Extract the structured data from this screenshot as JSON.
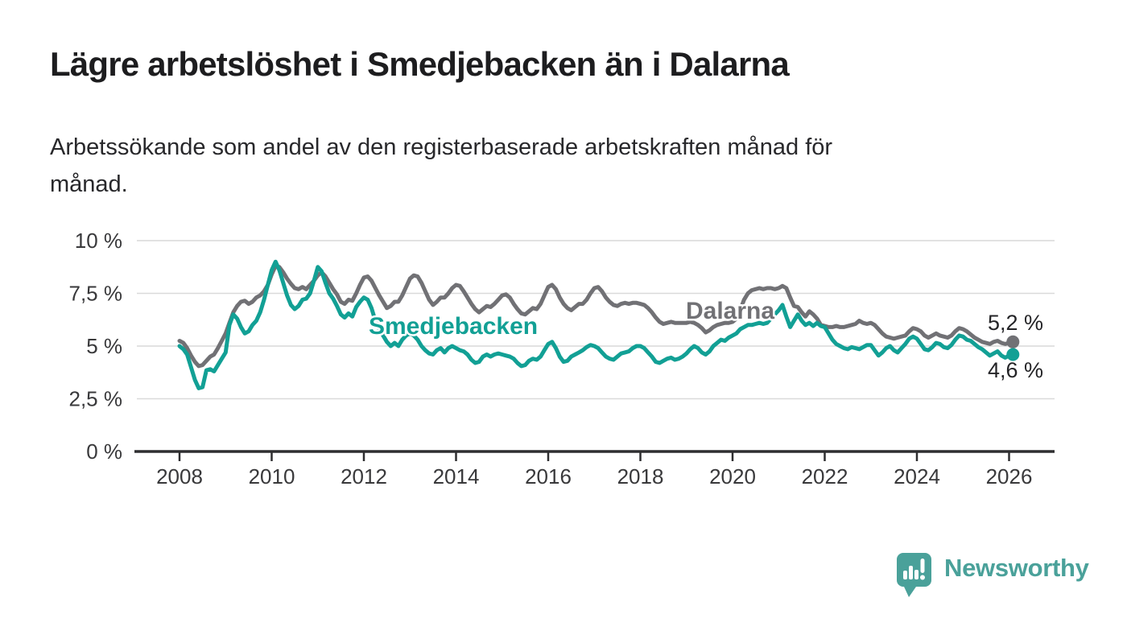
{
  "header": {
    "title": "Lägre arbetslöshet i Smedjebacken än i Dalarna",
    "subtitle_lines": [
      "Arbetssökande som andel av den registerbaserade arbetskraften månad för",
      "månad."
    ]
  },
  "chart_data": {
    "type": "line",
    "title": "Lägre arbetslöshet i Smedjebacken än i Dalarna",
    "subtitle": "Arbetssökande som andel av den registerbaserade arbetskraften månad för månad.",
    "x_unit": "year-month",
    "x_start": "2008-01",
    "x_end": "2026-02",
    "points_per_year": 12,
    "ylim": [
      0,
      10
    ],
    "grid": true,
    "legend_position": "inline-labels",
    "y_ticks": {
      "values": [
        10,
        7.5,
        5,
        2.5,
        0
      ],
      "labels": [
        "10 %",
        "7,5 %",
        "5 %",
        "2,5 %",
        "0 %"
      ]
    },
    "x_ticks": {
      "values": [
        2008,
        2010,
        2012,
        2014,
        2016,
        2018,
        2020,
        2022,
        2024,
        2026
      ],
      "labels": [
        "2008",
        "2010",
        "2012",
        "2014",
        "2016",
        "2018",
        "2020",
        "2022",
        "2024",
        "2026"
      ]
    },
    "series": [
      {
        "name": "Dalarna",
        "color": "#717175",
        "end_label": "5,2 %",
        "end_value": 5.2,
        "values": [
          5.25,
          5.15,
          4.9,
          4.55,
          4.25,
          4.05,
          4.1,
          4.3,
          4.5,
          4.6,
          4.9,
          5.25,
          5.6,
          6.1,
          6.6,
          6.9,
          7.1,
          7.15,
          7.0,
          7.1,
          7.3,
          7.4,
          7.6,
          7.9,
          8.4,
          8.8,
          8.75,
          8.5,
          8.2,
          7.95,
          7.75,
          7.7,
          7.8,
          7.7,
          7.9,
          8.1,
          8.35,
          8.5,
          8.3,
          8.0,
          7.7,
          7.45,
          7.1,
          7.0,
          7.2,
          7.15,
          7.5,
          7.9,
          8.25,
          8.3,
          8.1,
          7.75,
          7.4,
          7.1,
          6.8,
          6.9,
          7.1,
          7.1,
          7.4,
          7.8,
          8.2,
          8.35,
          8.3,
          8.0,
          7.6,
          7.2,
          6.95,
          7.1,
          7.3,
          7.3,
          7.5,
          7.75,
          7.9,
          7.85,
          7.6,
          7.3,
          7.0,
          6.75,
          6.6,
          6.75,
          6.9,
          6.85,
          7.0,
          7.2,
          7.4,
          7.45,
          7.3,
          7.0,
          6.75,
          6.55,
          6.5,
          6.65,
          6.8,
          6.75,
          7.0,
          7.4,
          7.8,
          7.9,
          7.7,
          7.3,
          7.0,
          6.8,
          6.7,
          6.85,
          7.0,
          7.0,
          7.2,
          7.5,
          7.75,
          7.8,
          7.6,
          7.3,
          7.1,
          6.95,
          6.9,
          7.0,
          7.05,
          7.0,
          7.05,
          7.05,
          7.0,
          6.95,
          6.8,
          6.6,
          6.35,
          6.15,
          6.05,
          6.1,
          6.15,
          6.1,
          6.1,
          6.1,
          6.1,
          6.15,
          6.1,
          6.0,
          5.85,
          5.65,
          5.75,
          5.9,
          6.0,
          6.05,
          6.1,
          6.1,
          6.15,
          6.3,
          6.7,
          7.2,
          7.5,
          7.65,
          7.7,
          7.75,
          7.7,
          7.75,
          7.75,
          7.7,
          7.75,
          7.85,
          7.75,
          7.3,
          6.9,
          6.85,
          6.6,
          6.4,
          6.65,
          6.5,
          6.3,
          6.0,
          5.95,
          5.9,
          5.9,
          5.95,
          5.9,
          5.9,
          5.95,
          6.0,
          6.05,
          6.2,
          6.1,
          6.05,
          6.1,
          6.0,
          5.8,
          5.6,
          5.45,
          5.4,
          5.35,
          5.4,
          5.45,
          5.5,
          5.7,
          5.85,
          5.8,
          5.7,
          5.5,
          5.4,
          5.5,
          5.6,
          5.5,
          5.45,
          5.4,
          5.5,
          5.7,
          5.85,
          5.8,
          5.7,
          5.55,
          5.4,
          5.3,
          5.2,
          5.15,
          5.1,
          5.2,
          5.25,
          5.15,
          5.1,
          5.15,
          5.2
        ]
      },
      {
        "name": "Smedjebacken",
        "color": "#12a095",
        "end_label": "4,6 %",
        "end_value": 4.6,
        "values": [
          5.0,
          4.85,
          4.6,
          4.0,
          3.4,
          3.0,
          3.05,
          3.85,
          3.9,
          3.8,
          4.1,
          4.4,
          4.7,
          6.0,
          6.5,
          6.3,
          5.9,
          5.6,
          5.7,
          6.0,
          6.2,
          6.6,
          7.2,
          7.9,
          8.6,
          9.0,
          8.6,
          8.0,
          7.4,
          6.95,
          6.75,
          6.9,
          7.2,
          7.25,
          7.5,
          8.1,
          8.75,
          8.55,
          8.0,
          7.5,
          7.25,
          6.9,
          6.5,
          6.35,
          6.55,
          6.4,
          6.85,
          7.1,
          7.3,
          7.2,
          6.8,
          6.2,
          5.8,
          5.5,
          5.2,
          5.0,
          5.15,
          5.0,
          5.3,
          5.5,
          5.6,
          5.5,
          5.3,
          5.0,
          4.8,
          4.65,
          4.6,
          4.8,
          4.9,
          4.7,
          4.9,
          5.0,
          4.9,
          4.8,
          4.75,
          4.6,
          4.35,
          4.2,
          4.25,
          4.5,
          4.6,
          4.5,
          4.6,
          4.65,
          4.6,
          4.55,
          4.5,
          4.4,
          4.2,
          4.05,
          4.1,
          4.3,
          4.4,
          4.35,
          4.5,
          4.8,
          5.1,
          5.2,
          4.9,
          4.5,
          4.25,
          4.3,
          4.5,
          4.6,
          4.7,
          4.8,
          4.95,
          5.05,
          5.0,
          4.9,
          4.7,
          4.5,
          4.4,
          4.35,
          4.5,
          4.65,
          4.7,
          4.75,
          4.9,
          5.0,
          5.0,
          4.9,
          4.7,
          4.5,
          4.25,
          4.2,
          4.3,
          4.4,
          4.45,
          4.35,
          4.4,
          4.5,
          4.65,
          4.85,
          5.0,
          4.9,
          4.7,
          4.6,
          4.75,
          5.0,
          5.15,
          5.3,
          5.25,
          5.4,
          5.5,
          5.6,
          5.8,
          5.9,
          6.0,
          6.0,
          6.05,
          6.1,
          6.05,
          6.1,
          6.3,
          6.5,
          6.7,
          6.95,
          6.4,
          5.9,
          6.2,
          6.5,
          6.2,
          6.0,
          6.1,
          5.95,
          6.1,
          5.95,
          5.9,
          5.6,
          5.3,
          5.1,
          5.0,
          4.9,
          4.85,
          4.95,
          4.9,
          4.85,
          4.95,
          5.05,
          5.05,
          4.8,
          4.55,
          4.7,
          4.9,
          5.0,
          4.8,
          4.7,
          4.9,
          5.1,
          5.35,
          5.45,
          5.35,
          5.1,
          4.85,
          4.8,
          4.95,
          5.15,
          5.1,
          4.95,
          4.9,
          5.05,
          5.3,
          5.5,
          5.45,
          5.3,
          5.25,
          5.1,
          4.95,
          4.85,
          4.7,
          4.55,
          4.65,
          4.75,
          4.55,
          4.45,
          4.55,
          4.6
        ]
      }
    ]
  },
  "footer": {
    "brand": "Newsworthy",
    "brand_color": "#4aa19a",
    "logo_icon": "newsworthy-speech-bubble-chart-icon"
  },
  "colors": {
    "smedjebacken_line": "#12a095",
    "dalarna_line": "#717175",
    "gridline": "#d9d9d9",
    "axis": "#2e2e30",
    "title_text": "#1d1d1f"
  }
}
